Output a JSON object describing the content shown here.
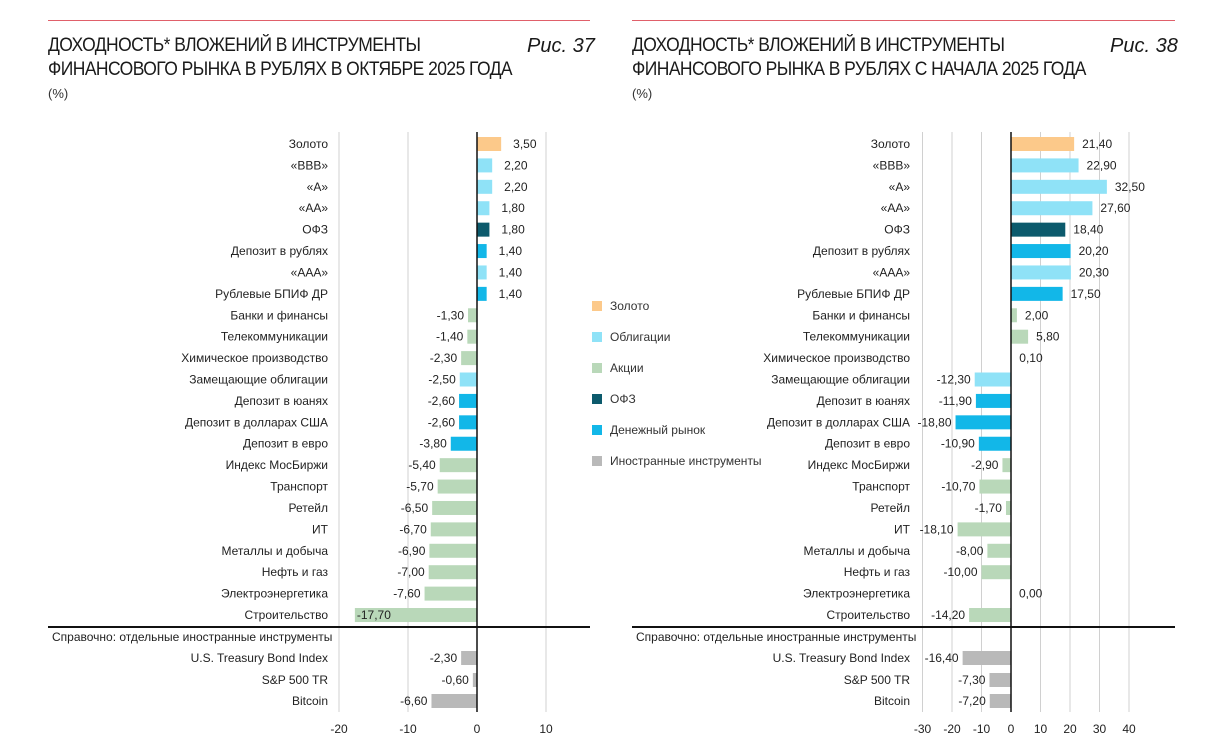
{
  "colors": {
    "gold": "#fcc98a",
    "bonds": "#8fe2f7",
    "stocks": "#b9d8b9",
    "ofz": "#0c5a6c",
    "money": "#12b7e8",
    "foreign": "#b9b9b9",
    "accent": "#e0606a"
  },
  "legend": [
    {
      "label": "Золото",
      "group": "gold"
    },
    {
      "label": "Облигации",
      "group": "bonds"
    },
    {
      "label": "Акции",
      "group": "stocks"
    },
    {
      "label": "ОФЗ",
      "group": "ofz"
    },
    {
      "label": "Денежный рынок",
      "group": "money"
    },
    {
      "label": "Иностранные инструменты",
      "group": "foreign"
    }
  ],
  "chart_data": [
    {
      "type": "bar",
      "orientation": "horizontal",
      "title": "ДОХОДНОСТЬ* ВЛОЖЕНИЙ В ИНСТРУМЕНТЫ ФИНАНСОВОГО РЫНКА В РУБЛЯХ В ОКТЯБРЕ 2025 ГОДА",
      "title_lines": [
        "ДОХОДНОСТЬ* ВЛОЖЕНИЙ В ИНСТРУМЕНТЫ",
        "ФИНАНСОВОГО РЫНКА В РУБЛЯХ В ОКТЯБРЕ 2025 ГОДА"
      ],
      "figure": "Рис. 37",
      "unit": "(%)",
      "xlim": [
        -20,
        15
      ],
      "xticks": [
        -20,
        -10,
        0,
        10
      ],
      "grid": true,
      "categories": [
        "Золото",
        "«BBB»",
        "«A»",
        "«AA»",
        "ОФЗ",
        "Депозит в рублях",
        "«AAA»",
        "Рублевые БПИФ ДР",
        "Банки и финансы",
        "Телекоммуникации",
        "Химическое производство",
        "Замещающие облигации",
        "Депозит в юанях",
        "Депозит в долларах США",
        "Депозит в евро",
        "Индекс МосБиржи",
        "Транспорт",
        "Ретейл",
        "ИТ",
        "Металлы и добыча",
        "Нефть и газ",
        "Электроэнергетика",
        "Строительство"
      ],
      "groups": [
        "gold",
        "bonds",
        "bonds",
        "bonds",
        "ofz",
        "money",
        "bonds",
        "money",
        "stocks",
        "stocks",
        "stocks",
        "bonds",
        "money",
        "money",
        "money",
        "stocks",
        "stocks",
        "stocks",
        "stocks",
        "stocks",
        "stocks",
        "stocks",
        "stocks"
      ],
      "values": [
        3.5,
        2.2,
        2.2,
        1.8,
        1.8,
        1.4,
        1.4,
        1.4,
        -1.3,
        -1.4,
        -2.3,
        -2.5,
        -2.6,
        -2.6,
        -3.8,
        -5.4,
        -5.7,
        -6.5,
        -6.7,
        -6.9,
        -7.0,
        -7.6,
        -17.7
      ],
      "value_labels": [
        "3,50",
        "2,20",
        "2,20",
        "1,80",
        "1,80",
        "1,40",
        "1,40",
        "1,40",
        "-1,30",
        "-1,40",
        "-2,30",
        "-2,50",
        "-2,60",
        "-2,60",
        "-3,80",
        "-5,40",
        "-5,70",
        "-6,50",
        "-6,70",
        "-6,90",
        "-7,00",
        "-7,60",
        "-17,70"
      ],
      "reference_heading": "Справочно: отдельные иностранные инструменты",
      "reference_categories": [
        "U.S. Treasury Bond Index",
        "S&P 500 TR",
        "Bitcoin"
      ],
      "reference_values": [
        -2.3,
        -0.6,
        -6.6
      ],
      "reference_labels": [
        "-2,30",
        "-0,60",
        "-6,60"
      ]
    },
    {
      "type": "bar",
      "orientation": "horizontal",
      "title": "ДОХОДНОСТЬ* ВЛОЖЕНИЙ В ИНСТРУМЕНТЫ ФИНАНСОВОГО РЫНКА В РУБЛЯХ С НАЧАЛА 2025 ГОДА",
      "title_lines": [
        "ДОХОДНОСТЬ* ВЛОЖЕНИЙ В ИНСТРУМЕНТЫ",
        "ФИНАНСОВОГО РЫНКА В РУБЛЯХ С НАЧАЛА 2025 ГОДА"
      ],
      "figure": "Рис. 38",
      "unit": "(%)",
      "xlim": [
        -30,
        55
      ],
      "xticks": [
        -30,
        -20,
        -10,
        0,
        10,
        20,
        30,
        40
      ],
      "grid": true,
      "categories": [
        "Золото",
        "«BBB»",
        "«A»",
        "«AA»",
        "ОФЗ",
        "Депозит в рублях",
        "«AAA»",
        "Рублевые БПИФ ДР",
        "Банки и финансы",
        "Телекоммуникации",
        "Химическое производство",
        "Замещающие облигации",
        "Депозит в юанях",
        "Депозит в долларах США",
        "Депозит в евро",
        "Индекс МосБиржи",
        "Транспорт",
        "Ретейл",
        "ИТ",
        "Металлы и добыча",
        "Нефть и газ",
        "Электроэнергетика",
        "Строительство"
      ],
      "groups": [
        "gold",
        "bonds",
        "bonds",
        "bonds",
        "ofz",
        "money",
        "bonds",
        "money",
        "stocks",
        "stocks",
        "stocks",
        "bonds",
        "money",
        "money",
        "money",
        "stocks",
        "stocks",
        "stocks",
        "stocks",
        "stocks",
        "stocks",
        "stocks",
        "stocks"
      ],
      "values": [
        21.4,
        22.9,
        32.5,
        27.6,
        18.4,
        20.2,
        20.3,
        17.5,
        2.0,
        5.8,
        0.1,
        -12.3,
        -11.9,
        -18.8,
        -10.9,
        -2.9,
        -10.7,
        -1.7,
        -18.1,
        -8.0,
        -10.0,
        0.0,
        -14.2
      ],
      "value_labels": [
        "21,40",
        "22,90",
        "32,50",
        "27,60",
        "18,40",
        "20,20",
        "20,30",
        "17,50",
        "2,00",
        "5,80",
        "0,10",
        "-12,30",
        "-11,90",
        "-18,80",
        "-10,90",
        "-2,90",
        "-10,70",
        "-1,70",
        "-18,10",
        "-8,00",
        "-10,00",
        "0,00",
        "-14,20"
      ],
      "reference_heading": "Справочно: отдельные иностранные инструменты",
      "reference_categories": [
        "U.S. Treasury Bond Index",
        "S&P 500 TR",
        "Bitcoin"
      ],
      "reference_values": [
        -16.4,
        -7.3,
        -7.2
      ],
      "reference_labels": [
        "-16,40",
        "-7,30",
        "-7,20"
      ]
    }
  ]
}
